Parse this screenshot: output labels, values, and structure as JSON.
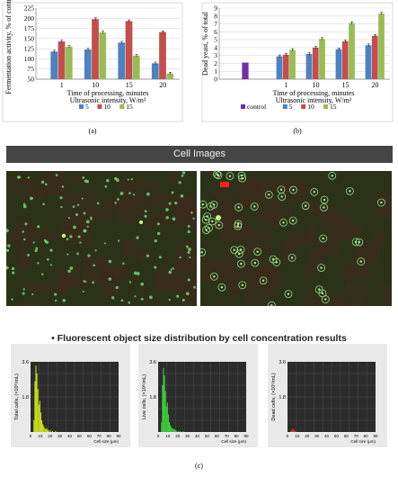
{
  "chart_data": [
    {
      "type": "bar",
      "panel_label": "(a)",
      "ylabel": "Fermentation activity, % of control",
      "xlabel": "Time of processing, minutes",
      "xlabel2": "Ultrasonic intensity, W/m²",
      "categories": [
        "1",
        "10",
        "15",
        "20"
      ],
      "ylim": [
        50,
        225
      ],
      "yticks": [
        "50",
        "75",
        "100",
        "125",
        "150",
        "175",
        "200",
        "225"
      ],
      "grid": true,
      "legend_position": "bottom",
      "series": [
        {
          "name": "5",
          "color": "#4f81bd",
          "values": [
            118,
            123,
            140,
            89
          ]
        },
        {
          "name": "10",
          "color": "#c0504d",
          "values": [
            143,
            198,
            193,
            166
          ]
        },
        {
          "name": "15",
          "color": "#9bbb59",
          "values": [
            130,
            165,
            108,
            64
          ]
        }
      ]
    },
    {
      "type": "bar",
      "panel_label": "(b)",
      "ylabel": "Dead yeast, % of total",
      "xlabel": "Time of processing, minutes",
      "xlabel2": "Ultrasonic intensity, W/m²",
      "categories": [
        "1",
        "10",
        "15",
        "20"
      ],
      "ylim": [
        0,
        9
      ],
      "yticks": [
        "0",
        "1",
        "2",
        "3",
        "4",
        "5",
        "6",
        "7",
        "8",
        "9"
      ],
      "grid": true,
      "legend_position": "bottom",
      "control": {
        "name": "control",
        "color": "#7030a0",
        "value": 2.1
      },
      "series": [
        {
          "name": "5",
          "color": "#4f81bd",
          "values": [
            2.9,
            3.2,
            3.8,
            4.3
          ]
        },
        {
          "name": "10",
          "color": "#c0504d",
          "values": [
            3.1,
            4.0,
            4.8,
            5.5
          ]
        },
        {
          "name": "15",
          "color": "#9bbb59",
          "values": [
            3.7,
            5.1,
            7.1,
            8.3
          ]
        }
      ]
    },
    {
      "type": "bar",
      "ylabel": "Total cells, (×10⁶/mL)",
      "xlabel": "Cell size (µm)",
      "xticks": [
        "0",
        "10",
        "20",
        "30",
        "40",
        "50",
        "60",
        "70",
        "80",
        "90"
      ],
      "yticks": [
        "1.8",
        "3.6"
      ],
      "ylim": [
        0,
        3.6
      ],
      "color": "#c8e020",
      "x": [
        3,
        4,
        5,
        6,
        7,
        8,
        9,
        10,
        11,
        12,
        13,
        14,
        15,
        16,
        17,
        18,
        20,
        22,
        25
      ],
      "values": [
        0.6,
        2.6,
        3.4,
        3.0,
        2.2,
        1.4,
        1.6,
        1.0,
        0.6,
        0.4,
        0.3,
        0.2,
        0.15,
        0.2,
        0.1,
        0.1,
        0.08,
        0.05,
        0.05
      ]
    },
    {
      "type": "bar",
      "ylabel": "Live cells, (×10⁶/mL)",
      "xlabel": "Cell size (µm)",
      "xticks": [
        "0",
        "10",
        "20",
        "30",
        "40",
        "50",
        "60",
        "70",
        "80",
        "90"
      ],
      "yticks": [
        "1.8",
        "3.6"
      ],
      "ylim": [
        0,
        3.6
      ],
      "color": "#3ecf3e",
      "x": [
        3,
        4,
        5,
        6,
        7,
        8,
        9,
        10,
        11,
        12,
        13,
        14,
        15,
        16,
        17,
        18,
        20,
        22,
        25
      ],
      "values": [
        0.5,
        2.4,
        3.3,
        2.9,
        2.1,
        1.3,
        1.5,
        0.9,
        0.5,
        0.35,
        0.25,
        0.2,
        0.15,
        0.15,
        0.1,
        0.08,
        0.06,
        0.05,
        0.04
      ]
    },
    {
      "type": "bar",
      "ylabel": "Dead cells, (×10⁶/mL)",
      "xlabel": "Cell size (µm)",
      "xticks": [
        "0",
        "10",
        "20",
        "30",
        "40",
        "50",
        "60",
        "70",
        "80",
        "90"
      ],
      "yticks": [
        "1.8",
        "3.6"
      ],
      "ylim": [
        0,
        3.6
      ],
      "color": "#e03030",
      "x": [
        3,
        4,
        5,
        6,
        7,
        8
      ],
      "values": [
        0.05,
        0.12,
        0.18,
        0.1,
        0.06,
        0.04
      ]
    }
  ],
  "banner": "Cell Images",
  "fluorescence_title": "• Fluorescent object size distribution by cell concentration results",
  "panel_c_label": "(c)",
  "colors": {
    "banner": "#454545",
    "micro_bg": "#2c3218",
    "micro_red": "#3c2a1c",
    "hist_bg": "#2c2c2c"
  }
}
